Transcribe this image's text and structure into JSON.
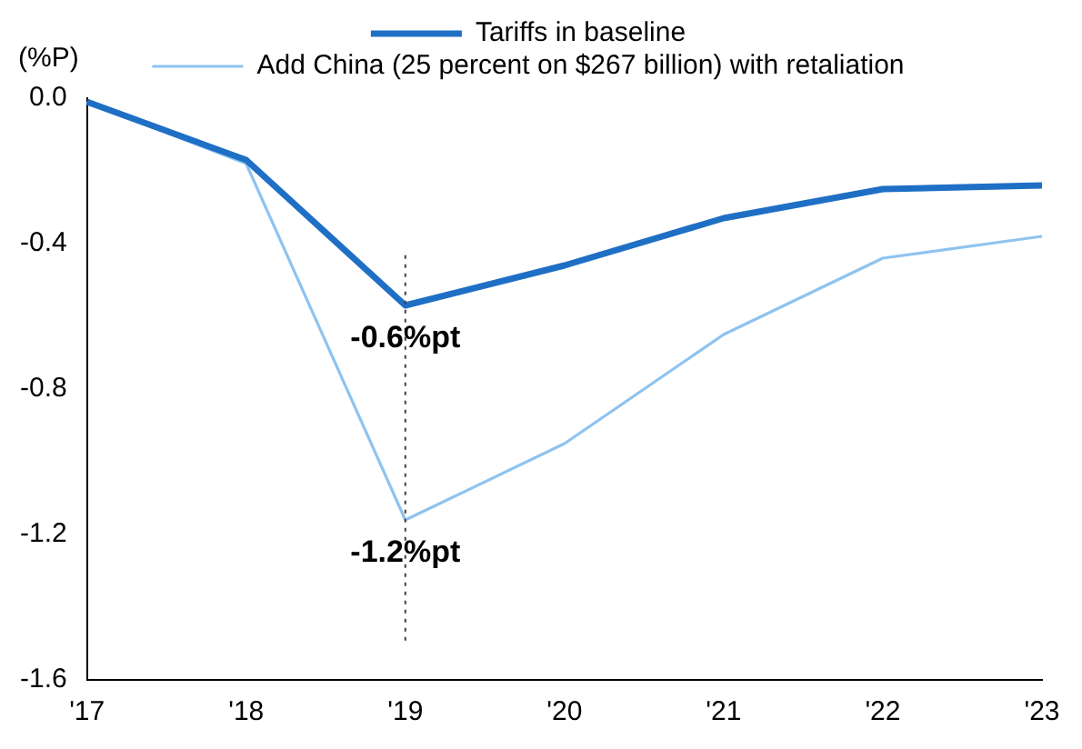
{
  "chart_data": {
    "type": "line",
    "ylabel": "(%P)",
    "categories": [
      "'17",
      "'18",
      "'19",
      "'20",
      "'21",
      "'22",
      "'23"
    ],
    "series": [
      {
        "name": "Tariffs in baseline",
        "color": "#1f6fc5",
        "values": [
          -0.01,
          -0.17,
          -0.57,
          -0.46,
          -0.33,
          -0.25,
          -0.24
        ]
      },
      {
        "name": "Add China (25 percent on $267 billion) with retaliation",
        "color": "#8ec3f0",
        "values": [
          -0.01,
          -0.18,
          -1.16,
          -0.95,
          -0.65,
          -0.44,
          -0.38
        ]
      }
    ],
    "ylim": [
      -1.6,
      0
    ],
    "yticks": [
      {
        "value": 0,
        "label": "0.0"
      },
      -0.4,
      -0.8,
      -1.2,
      -1.6
    ],
    "grid": false,
    "legend": "top",
    "marker": "none",
    "line_style": "solid",
    "ref_lines": [
      {
        "axis": "x",
        "value": "'19",
        "color": "#404040",
        "line_style": "dotted"
      }
    ],
    "annotations": [
      {
        "text": "-0.6%pt",
        "x": "'19",
        "y": -0.57
      },
      {
        "text": "-1.2%pt",
        "x": "'19",
        "y": -1.16
      }
    ]
  }
}
